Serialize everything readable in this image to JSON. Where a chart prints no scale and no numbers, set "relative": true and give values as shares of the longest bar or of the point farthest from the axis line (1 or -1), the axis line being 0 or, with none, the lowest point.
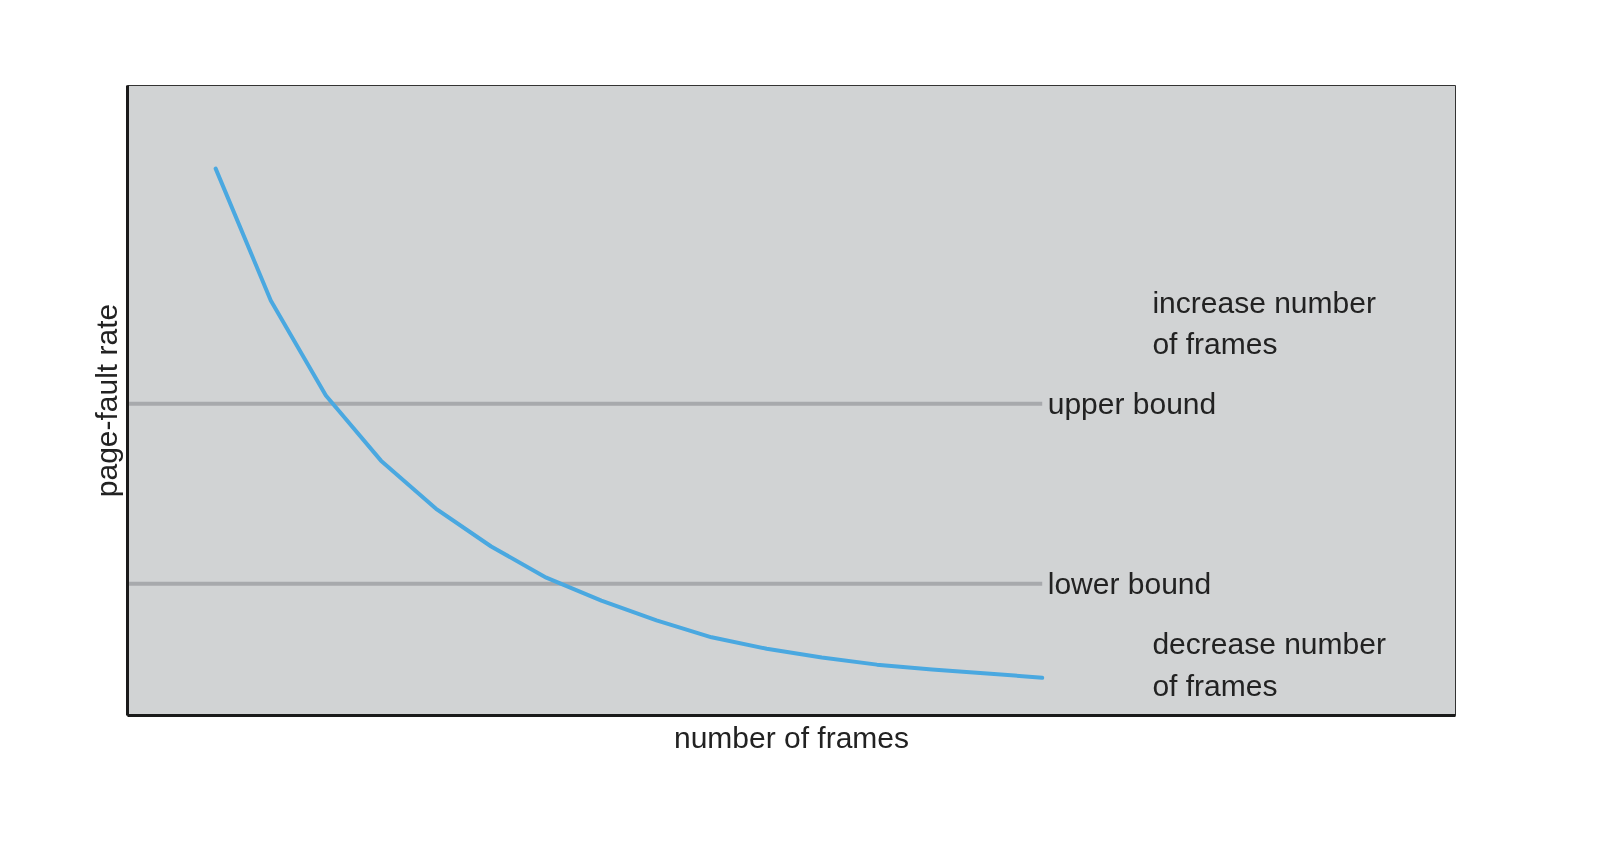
{
  "chart_data": {
    "type": "line",
    "relative": true,
    "xlabel": "number of frames",
    "ylabel": "page-fault rate",
    "categories": [
      null,
      null,
      null,
      null,
      null,
      null,
      null,
      null,
      null,
      null,
      null,
      null,
      null,
      null,
      null,
      null
    ],
    "series": [
      {
        "color": "#4aa8e0",
        "values": [
          1.0,
          0.759,
          0.585,
          0.466,
          0.378,
          0.309,
          0.252,
          0.21,
          0.174,
          0.143,
          0.122,
          0.106,
          0.093,
          0.084,
          0.077,
          0.069
        ]
      }
    ],
    "ref_lines": [
      {
        "axis": "y",
        "value": 0.57,
        "label": "upper bound",
        "color": "#a7a9ac"
      },
      {
        "axis": "y",
        "value": 0.241,
        "label": "lower bound",
        "color": "#a7a9ac"
      }
    ],
    "annotations": [
      "increase number\nof frames",
      "decrease number\nof frames"
    ]
  }
}
